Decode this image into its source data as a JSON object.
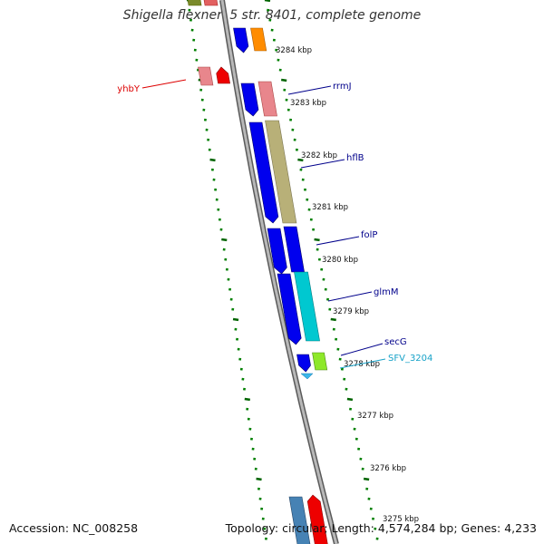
{
  "title": "Shigella flexneri 5 str. 8401, complete genome",
  "footer": {
    "accession": "Accession: NC_008258",
    "stats": "Topology: circular; Length: 4,574,284 bp; Genes: 4,233"
  },
  "colors": {
    "backbone": "#888888",
    "tick_minor": "#008000",
    "tick_major": "#006400",
    "cds_forward": "#0000ee",
    "label_forward": "#00008b",
    "label_reverse": "#dd0000",
    "label_other": "#17a2c8"
  },
  "scale_ticks": [
    "3284 kbp",
    "3283 kbp",
    "3282 kbp",
    "3281 kbp",
    "3280 kbp",
    "3279 kbp",
    "3278 kbp",
    "3277 kbp",
    "3276 kbp",
    "3275 kbp"
  ],
  "genes": [
    {
      "name": "yhbY",
      "strand": "reverse"
    },
    {
      "name": "rrmJ",
      "strand": "forward"
    },
    {
      "name": "hflB",
      "strand": "forward"
    },
    {
      "name": "folP",
      "strand": "forward"
    },
    {
      "name": "glmM",
      "strand": "forward"
    },
    {
      "name": "secG",
      "strand": "forward"
    },
    {
      "name": "SFV_3204",
      "strand": "other"
    }
  ]
}
